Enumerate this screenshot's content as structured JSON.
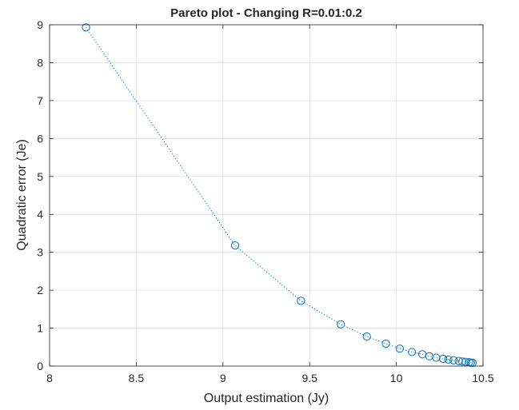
{
  "chart_data": {
    "type": "scatter",
    "title": "Pareto plot - Changing R=0.01:0.2",
    "xlabel": "Output estimation (Jy)",
    "ylabel": "Quadratic error (Je)",
    "xlim": [
      8,
      10.5
    ],
    "ylim": [
      0,
      9
    ],
    "grid": true,
    "box": true,
    "connector": "dotted",
    "marker": "open-circle",
    "color": "#0072BD",
    "xticks": [
      "8",
      "8.5",
      "9",
      "9.5",
      "10",
      "10.5"
    ],
    "yticks": [
      "0",
      "1",
      "2",
      "3",
      "4",
      "5",
      "6",
      "7",
      "8",
      "9"
    ],
    "series": [
      {
        "x": [
          8.21,
          9.07,
          9.45,
          9.68,
          9.83,
          9.94,
          10.02,
          10.09,
          10.15,
          10.19,
          10.23,
          10.27,
          10.3,
          10.33,
          10.36,
          10.38,
          10.4,
          10.42,
          10.43,
          10.44
        ],
        "y": [
          8.93,
          3.18,
          1.72,
          1.1,
          0.78,
          0.59,
          0.46,
          0.37,
          0.31,
          0.26,
          0.22,
          0.19,
          0.17,
          0.15,
          0.135,
          0.12,
          0.11,
          0.1,
          0.09,
          0.085
        ]
      }
    ]
  }
}
